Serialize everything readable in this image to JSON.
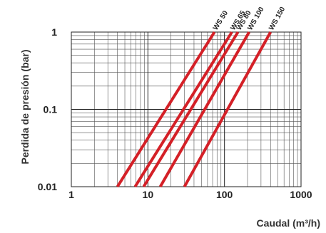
{
  "chart_data": {
    "type": "line",
    "title": "",
    "xlabel": "Caudal (m³/h)",
    "ylabel": "Perdida de presión (bar)",
    "x_scale": "log",
    "y_scale": "log",
    "xlim": [
      1,
      1000
    ],
    "ylim": [
      0.01,
      1
    ],
    "x_ticks": [
      "1",
      "10",
      "100",
      "1000"
    ],
    "y_ticks": [
      "0.01",
      "0.1",
      "1"
    ],
    "grid": true,
    "line_color": "#d42027",
    "series": [
      {
        "name": "WS 50",
        "x": [
          4.0,
          74.0
        ],
        "y": [
          0.01,
          1
        ]
      },
      {
        "name": "WS 65",
        "x": [
          6.8,
          125.0
        ],
        "y": [
          0.01,
          1
        ]
      },
      {
        "name": "WS 80",
        "x": [
          8.8,
          150.0
        ],
        "y": [
          0.01,
          1
        ]
      },
      {
        "name": "WS 100",
        "x": [
          14.5,
          210.0
        ],
        "y": [
          0.01,
          1
        ]
      },
      {
        "name": "WS 150",
        "x": [
          30.0,
          400.0
        ],
        "y": [
          0.01,
          1
        ]
      }
    ]
  }
}
